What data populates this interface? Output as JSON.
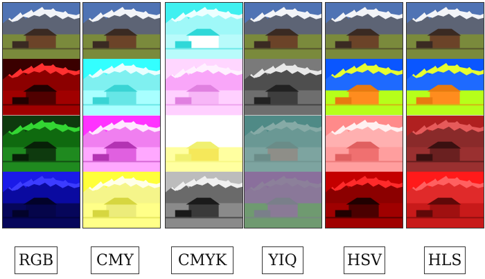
{
  "figure": {
    "columns": [
      {
        "label": "RGB",
        "panels": [
          {
            "channel": "original",
            "sky": "#4f73b4",
            "mtn": "#5d6475",
            "snow": "#f2f4f8",
            "field": "#7a8a3c",
            "barn": "#6b4328",
            "roof": "#3a2a22"
          },
          {
            "channel": "R",
            "sky": "#3a0000",
            "mtn": "#8c0000",
            "snow": "#ff3030",
            "field": "#a00000",
            "barn": "#500000",
            "roof": "#220000"
          },
          {
            "channel": "G",
            "sky": "#0e3a0e",
            "mtn": "#0f6a0f",
            "snow": "#33d633",
            "field": "#1f8a1f",
            "barn": "#0e3a0e",
            "roof": "#072007"
          },
          {
            "channel": "B",
            "sky": "#1a1ae8",
            "mtn": "#0a0aa0",
            "snow": "#3c3cff",
            "field": "#06065a",
            "barn": "#05054a",
            "roof": "#02022a"
          }
        ]
      },
      {
        "label": "CMY",
        "panels": [
          {
            "channel": "original",
            "sky": "#4f73b4",
            "mtn": "#5d6475",
            "snow": "#f2f4f8",
            "field": "#7a8a3c",
            "barn": "#6b4328",
            "roof": "#3a2a22"
          },
          {
            "channel": "C",
            "sky": "#33ffff",
            "mtn": "#7ff0f0",
            "snow": "#e8ffff",
            "field": "#a8ffff",
            "barn": "#66e6e6",
            "roof": "#39d4d4"
          },
          {
            "channel": "M",
            "sky": "#ff33ff",
            "mtn": "#f07ff0",
            "snow": "#ffe8ff",
            "field": "#ffa8ff",
            "barn": "#e060e0",
            "roof": "#b333b3"
          },
          {
            "channel": "Y",
            "sky": "#ffff3a",
            "mtn": "#f5f58a",
            "snow": "#ffffe8",
            "field": "#ffff88",
            "barn": "#ecec7a",
            "roof": "#d6d640"
          }
        ]
      },
      {
        "label": "CMYK",
        "panels": [
          {
            "channel": "C",
            "sky": "#40f0f0",
            "mtn": "#9ff8f8",
            "snow": "#ecffff",
            "field": "#b8fbfb",
            "barn": "#ffffff",
            "roof": "#2fd8d8"
          },
          {
            "channel": "M",
            "sky": "#ffd6ff",
            "mtn": "#f9a6f9",
            "snow": "#fff0ff",
            "field": "#ffd0ff",
            "barn": "#f7b6f7",
            "roof": "#e080e0"
          },
          {
            "channel": "Y",
            "sky": "#ffffff",
            "mtn": "#ffffff",
            "snow": "#ffffff",
            "field": "#ffffa0",
            "barn": "#f5e85a",
            "roof": "#f0f070"
          },
          {
            "channel": "K",
            "sky": "#bcbcbc",
            "mtn": "#6a6a6a",
            "snow": "#f0f0f0",
            "field": "#8a8a8a",
            "barn": "#3a3a3a",
            "roof": "#1a1a1a"
          }
        ]
      },
      {
        "label": "YIQ",
        "panels": [
          {
            "channel": "original",
            "sky": "#4f73b4",
            "mtn": "#5d6475",
            "snow": "#f2f4f8",
            "field": "#7a8a3c",
            "barn": "#6b4328",
            "roof": "#3a2a22"
          },
          {
            "channel": "Y",
            "sky": "#7a7a7a",
            "mtn": "#4e4e4e",
            "snow": "#e8e8e8",
            "field": "#6e6e6e",
            "barn": "#3e3e3e",
            "roof": "#222222"
          },
          {
            "channel": "I",
            "sky": "#4f8a86",
            "mtn": "#6a9894",
            "snow": "#86aaa6",
            "field": "#7da4a0",
            "barn": "#8e8e88",
            "roof": "#6a8c88"
          },
          {
            "channel": "Q",
            "sky": "#8a6f9c",
            "mtn": "#8a7899",
            "snow": "#8c809a",
            "field": "#6f9a70",
            "barn": "#8a7a96",
            "roof": "#7a7f8a"
          }
        ]
      },
      {
        "label": "HSV",
        "panels": [
          {
            "channel": "original",
            "sky": "#4f73b4",
            "mtn": "#5d6475",
            "snow": "#f2f4f8",
            "field": "#7a8a3c",
            "barn": "#6b4328",
            "roof": "#3a2a22"
          },
          {
            "channel": "H",
            "sky": "#0a56ff",
            "mtn": "#1e6aff",
            "snow": "#e6ff30",
            "field": "#b6ff1a",
            "barn": "#ff8c1e",
            "roof": "#e87a10"
          },
          {
            "channel": "S",
            "sky": "#ff8a8a",
            "mtn": "#ffb0b0",
            "snow": "#fff0f0",
            "field": "#ff9e9e",
            "barn": "#f07070",
            "roof": "#e06060"
          },
          {
            "channel": "V",
            "sky": "#c40000",
            "mtn": "#8c0000",
            "snow": "#ff2a2a",
            "field": "#a00000",
            "barn": "#4a0000",
            "roof": "#200000"
          }
        ]
      },
      {
        "label": "HLS",
        "panels": [
          {
            "channel": "original",
            "sky": "#4f73b4",
            "mtn": "#5d6475",
            "snow": "#f2f4f8",
            "field": "#7a8a3c",
            "barn": "#6b4328",
            "roof": "#3a2a22"
          },
          {
            "channel": "H",
            "sky": "#0a56ff",
            "mtn": "#1e6aff",
            "snow": "#e6ff30",
            "field": "#b6ff1a",
            "barn": "#ff8c1e",
            "roof": "#e87a10"
          },
          {
            "channel": "L",
            "sky": "#b02020",
            "mtn": "#8a2a2a",
            "snow": "#e65a5a",
            "field": "#9a3030",
            "barn": "#6a2020",
            "roof": "#3a1010"
          },
          {
            "channel": "S",
            "sky": "#ff1a1a",
            "mtn": "#e02a2a",
            "snow": "#ff6060",
            "field": "#c81a1a",
            "barn": "#a01010",
            "roof": "#600808"
          }
        ]
      }
    ]
  }
}
